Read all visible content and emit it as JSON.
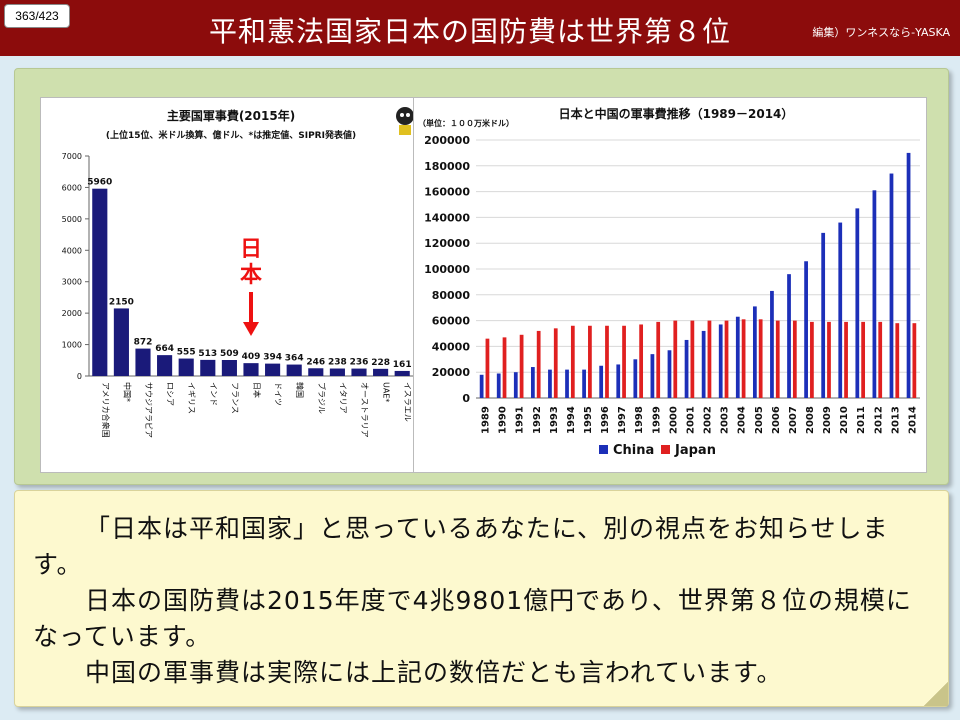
{
  "page_number": "363/423",
  "title": "平和憲法国家日本の国防費は世界第８位",
  "credit": "編集）ワンネスなら-YASKA",
  "chart_data": [
    {
      "type": "bar",
      "title": "主要国軍事費(2015年)",
      "subtitle": "(上位15位、米ドル換算、億ドル、*は推定値、SIPRI発表値)",
      "categories": [
        "アメリカ合衆国",
        "中国*",
        "サウジアラビア",
        "ロシア",
        "イギリス",
        "インド",
        "フランス",
        "日本",
        "ドイツ",
        "韓国",
        "ブラジル",
        "イタリア",
        "オーストラリア",
        "UAE*",
        "イスラエル"
      ],
      "values": [
        5960,
        2150,
        872,
        664,
        555,
        513,
        509,
        409,
        394,
        364,
        246,
        238,
        236,
        228,
        161
      ],
      "value_labels": [
        "5960",
        "2150",
        "872",
        "664",
        "555",
        "513",
        "509",
        "409",
        "394",
        "364",
        "246",
        "238",
        "236",
        "228",
        "161"
      ],
      "yticks": [
        "0",
        "1000",
        "2000",
        "3000",
        "4000",
        "5000",
        "6000",
        "7000"
      ],
      "ylim": [
        0,
        7000
      ],
      "annotation": "日本",
      "bar_color": "#1a1a7a",
      "annotation_color": "#ee1111"
    },
    {
      "type": "bar",
      "title": "日本と中国の軍事費推移（1989－2014）",
      "ylabel": "（単位：１００万米ドル）",
      "categories": [
        "1989",
        "1990",
        "1991",
        "1992",
        "1993",
        "1994",
        "1995",
        "1996",
        "1997",
        "1998",
        "1999",
        "2000",
        "2001",
        "2002",
        "2003",
        "2004",
        "2005",
        "2006",
        "2007",
        "2008",
        "2009",
        "2010",
        "2011",
        "2012",
        "2013",
        "2014"
      ],
      "series": [
        {
          "name": "China",
          "color": "#1c2fb8",
          "values": [
            18000,
            19000,
            20000,
            24000,
            22000,
            22000,
            22000,
            25000,
            26000,
            30000,
            34000,
            37000,
            45000,
            52000,
            57000,
            63000,
            71000,
            83000,
            96000,
            106000,
            128000,
            136000,
            147000,
            161000,
            174000,
            190000
          ]
        },
        {
          "name": "Japan",
          "color": "#e02020",
          "values": [
            46000,
            47000,
            49000,
            52000,
            54000,
            56000,
            56000,
            56000,
            56000,
            57000,
            59000,
            60000,
            60000,
            60000,
            60000,
            61000,
            61000,
            60000,
            60000,
            59000,
            59000,
            59000,
            59000,
            59000,
            58000,
            58000
          ]
        }
      ],
      "yticks": [
        "0",
        "20000",
        "40000",
        "60000",
        "80000",
        "100000",
        "120000",
        "140000",
        "160000",
        "180000",
        "200000"
      ],
      "ylim": [
        0,
        200000
      ]
    }
  ],
  "text": {
    "p1": "「日本は平和国家」と思っているあなたに、別の視点をお知らせします。",
    "p2": "日本の国防費は2015年度で4兆9801億円であり、世界第８位の規模になっています。",
    "p3": "中国の軍事費は実際には上記の数倍だとも言われています。"
  }
}
